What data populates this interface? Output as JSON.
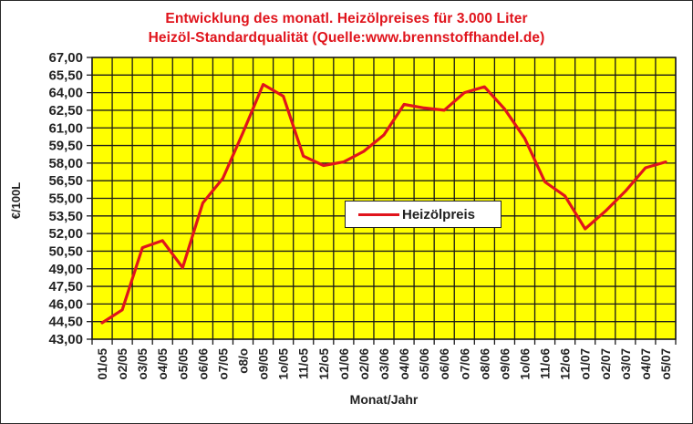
{
  "chart_data": {
    "type": "line",
    "title": "Entwicklung des monatl. Heizölpreises für 3.000 Liter",
    "subtitle": "Heizöl-Standardqualität (Quelle:www.brennstoffhandel.de)",
    "xlabel": "Monat/Jahr",
    "ylabel": "€/100L",
    "ylim": [
      43.0,
      67.0
    ],
    "ytick_step": 1.5,
    "yticks": [
      "43,00",
      "44,50",
      "46,00",
      "47,50",
      "49,00",
      "50,50",
      "52,00",
      "53,50",
      "55,00",
      "56,50",
      "58,00",
      "59,50",
      "61,00",
      "62,50",
      "64,00",
      "65,50",
      "67,00"
    ],
    "grid": true,
    "legend_position": "center",
    "categories": [
      "01/o5",
      "o2/05",
      "o3/05",
      "o4/05",
      "o5/05",
      "o6/06",
      "o7/05",
      "o8/o",
      "o9/05",
      "1o/05",
      "11/o5",
      "12/o5",
      "o1/06",
      "o2/06",
      "o3/06",
      "o4/06",
      "o5/06",
      "o6/06",
      "o7/06",
      "o8/06",
      "o9/06",
      "1o/06",
      "11/o6",
      "12/o6",
      "o1/07",
      "o2/07",
      "o3/07",
      "o4/07",
      "o5/07"
    ],
    "series": [
      {
        "name": "Heizölpreis",
        "color": "#e0141c",
        "values": [
          44.4,
          45.5,
          50.8,
          51.4,
          49.1,
          54.6,
          56.7,
          60.6,
          64.7,
          63.7,
          58.6,
          57.8,
          58.1,
          59.0,
          60.4,
          63.0,
          62.7,
          62.5,
          64.0,
          64.5,
          62.6,
          60.1,
          56.4,
          55.2,
          52.4,
          53.9,
          55.6,
          57.6,
          58.1
        ]
      }
    ]
  },
  "colors": {
    "plot_background": "#ffff00",
    "grid": "#1a1a1a",
    "title": "#e0141c",
    "line": "#e0141c",
    "axis_text": "#222222"
  },
  "legend": {
    "label": "Heizölpreis"
  }
}
